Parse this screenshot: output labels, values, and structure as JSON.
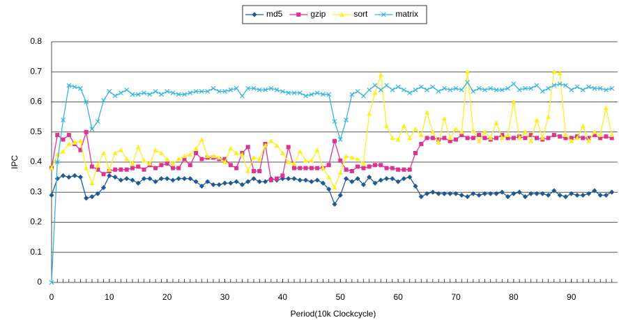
{
  "chart_data": {
    "type": "line",
    "x_label": "Period(10k Clockcycle)",
    "y_label": "IPC",
    "x": [
      0,
      1,
      2,
      3,
      4,
      5,
      6,
      7,
      8,
      9,
      10,
      11,
      12,
      13,
      14,
      15,
      16,
      17,
      18,
      19,
      20,
      21,
      22,
      23,
      24,
      25,
      26,
      27,
      28,
      29,
      30,
      31,
      32,
      33,
      34,
      35,
      36,
      37,
      38,
      39,
      40,
      41,
      42,
      43,
      44,
      45,
      46,
      47,
      48,
      49,
      50,
      51,
      52,
      53,
      54,
      55,
      56,
      57,
      58,
      59,
      60,
      61,
      62,
      63,
      64,
      65,
      66,
      67,
      68,
      69,
      70,
      71,
      72,
      73,
      74,
      75,
      76,
      77,
      78,
      79,
      80,
      81,
      82,
      83,
      84,
      85,
      86,
      87,
      88,
      89,
      90,
      91,
      92,
      93,
      94,
      95,
      96,
      97
    ],
    "xlim": [
      0,
      98
    ],
    "xticks": [
      0,
      10,
      20,
      30,
      40,
      50,
      60,
      70,
      80,
      90
    ],
    "ylim": [
      0,
      0.8
    ],
    "yticks": [
      0,
      0.1,
      0.2,
      0.3,
      0.4,
      0.5,
      0.6,
      0.7,
      0.8
    ],
    "grid": true,
    "legend": "top",
    "series": [
      {
        "name": "md5",
        "color": "#1f5a96",
        "marker": "diamond",
        "values": [
          0.29,
          0.345,
          0.355,
          0.35,
          0.355,
          0.35,
          0.28,
          0.285,
          0.295,
          0.315,
          0.355,
          0.35,
          0.34,
          0.345,
          0.34,
          0.33,
          0.345,
          0.345,
          0.335,
          0.345,
          0.345,
          0.34,
          0.345,
          0.345,
          0.345,
          0.335,
          0.32,
          0.335,
          0.325,
          0.325,
          0.33,
          0.33,
          0.335,
          0.325,
          0.335,
          0.345,
          0.335,
          0.335,
          0.345,
          0.34,
          0.345,
          0.345,
          0.345,
          0.34,
          0.34,
          0.335,
          0.34,
          0.33,
          0.31,
          0.26,
          0.29,
          0.345,
          0.335,
          0.345,
          0.325,
          0.35,
          0.33,
          0.34,
          0.345,
          0.345,
          0.335,
          0.345,
          0.35,
          0.32,
          0.285,
          0.295,
          0.3,
          0.295,
          0.295,
          0.295,
          0.295,
          0.29,
          0.285,
          0.295,
          0.29,
          0.295,
          0.295,
          0.295,
          0.3,
          0.285,
          0.295,
          0.3,
          0.285,
          0.295,
          0.295,
          0.295,
          0.29,
          0.305,
          0.29,
          0.285,
          0.295,
          0.29,
          0.29,
          0.295,
          0.305,
          0.29,
          0.29,
          0.3
        ]
      },
      {
        "name": "gzip",
        "color": "#e0338f",
        "marker": "square",
        "values": [
          0.38,
          0.49,
          0.475,
          0.49,
          0.46,
          0.44,
          0.5,
          0.385,
          0.375,
          0.36,
          0.37,
          0.375,
          0.375,
          0.375,
          0.38,
          0.385,
          0.375,
          0.39,
          0.38,
          0.39,
          0.395,
          0.38,
          0.38,
          0.41,
          0.39,
          0.43,
          0.41,
          0.415,
          0.415,
          0.41,
          0.41,
          0.39,
          0.38,
          0.43,
          0.45,
          0.37,
          0.37,
          0.46,
          0.34,
          0.345,
          0.355,
          0.45,
          0.38,
          0.38,
          0.38,
          0.38,
          0.38,
          0.38,
          0.39,
          0.47,
          0.405,
          0.375,
          0.37,
          0.385,
          0.38,
          0.385,
          0.39,
          0.39,
          0.38,
          0.38,
          0.375,
          0.375,
          0.375,
          0.43,
          0.46,
          0.48,
          0.48,
          0.475,
          0.48,
          0.47,
          0.475,
          0.49,
          0.48,
          0.48,
          0.49,
          0.48,
          0.475,
          0.48,
          0.49,
          0.48,
          0.48,
          0.485,
          0.48,
          0.49,
          0.48,
          0.475,
          0.48,
          0.49,
          0.485,
          0.48,
          0.48,
          0.485,
          0.48,
          0.48,
          0.49,
          0.48,
          0.485,
          0.48
        ]
      },
      {
        "name": "sort",
        "color": "#ffee22",
        "marker": "triangle",
        "values": [
          0.38,
          0.425,
          0.435,
          0.46,
          0.465,
          0.47,
          0.38,
          0.33,
          0.39,
          0.43,
          0.375,
          0.43,
          0.44,
          0.41,
          0.395,
          0.45,
          0.405,
          0.395,
          0.44,
          0.43,
          0.41,
          0.395,
          0.41,
          0.42,
          0.425,
          0.445,
          0.475,
          0.42,
          0.42,
          0.415,
          0.4,
          0.445,
          0.43,
          0.425,
          0.37,
          0.415,
          0.41,
          0.455,
          0.47,
          0.455,
          0.43,
          0.4,
          0.395,
          0.435,
          0.405,
          0.405,
          0.44,
          0.38,
          0.35,
          0.315,
          0.365,
          0.42,
          0.415,
          0.41,
          0.395,
          0.56,
          0.63,
          0.69,
          0.52,
          0.48,
          0.475,
          0.52,
          0.48,
          0.51,
          0.49,
          0.565,
          0.5,
          0.465,
          0.545,
          0.48,
          0.51,
          0.5,
          0.7,
          0.505,
          0.47,
          0.5,
          0.48,
          0.53,
          0.48,
          0.49,
          0.6,
          0.48,
          0.5,
          0.47,
          0.54,
          0.48,
          0.55,
          0.7,
          0.695,
          0.49,
          0.47,
          0.48,
          0.52,
          0.47,
          0.5,
          0.49,
          0.58,
          0.49
        ]
      },
      {
        "name": "matrix",
        "color": "#33b5e0",
        "marker": "cross",
        "values": [
          0,
          0.4,
          0.54,
          0.655,
          0.65,
          0.645,
          0.6,
          0.51,
          0.535,
          0.605,
          0.635,
          0.62,
          0.63,
          0.64,
          0.625,
          0.625,
          0.63,
          0.625,
          0.635,
          0.625,
          0.635,
          0.63,
          0.625,
          0.625,
          0.63,
          0.635,
          0.635,
          0.635,
          0.645,
          0.635,
          0.635,
          0.64,
          0.645,
          0.62,
          0.645,
          0.645,
          0.64,
          0.64,
          0.645,
          0.64,
          0.635,
          0.63,
          0.63,
          0.63,
          0.62,
          0.625,
          0.63,
          0.625,
          0.625,
          0.535,
          0.475,
          0.54,
          0.625,
          0.635,
          0.62,
          0.64,
          0.655,
          0.64,
          0.655,
          0.64,
          0.65,
          0.64,
          0.63,
          0.64,
          0.65,
          0.64,
          0.65,
          0.635,
          0.645,
          0.64,
          0.645,
          0.64,
          0.665,
          0.635,
          0.645,
          0.64,
          0.645,
          0.64,
          0.64,
          0.645,
          0.66,
          0.64,
          0.645,
          0.645,
          0.655,
          0.635,
          0.645,
          0.655,
          0.66,
          0.655,
          0.64,
          0.65,
          0.64,
          0.65,
          0.645,
          0.645,
          0.64,
          0.645
        ]
      }
    ]
  }
}
